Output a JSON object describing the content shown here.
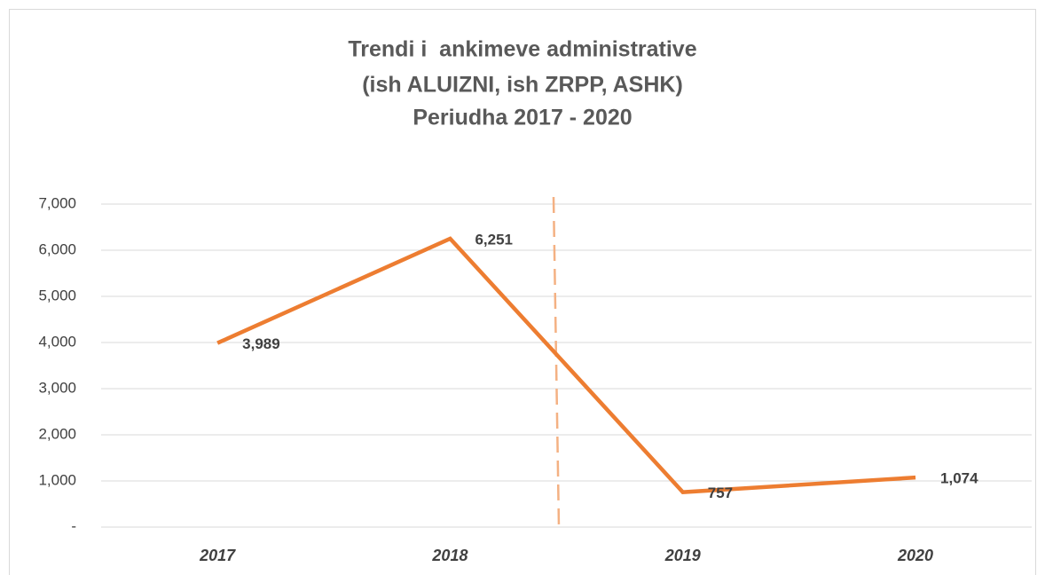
{
  "chart_data": {
    "type": "line",
    "title": [
      "Trendi i  ankimeve administrative",
      "(ish ALUIZNI, ish ZRPP, ASHK)",
      "Periudha 2017 - 2020"
    ],
    "categories": [
      "2017",
      "2018",
      "2019",
      "2020"
    ],
    "values": [
      3989,
      6251,
      757,
      1074
    ],
    "value_labels": [
      "3,989",
      "6,251",
      "757",
      "1,074"
    ],
    "color": "#ed7d31",
    "ylim": [
      0,
      7000
    ],
    "yticks": [
      {
        "value": 0,
        "label": "-"
      },
      {
        "value": 1000,
        "label": "1,000"
      },
      {
        "value": 2000,
        "label": "2,000"
      },
      {
        "value": 3000,
        "label": "3,000"
      },
      {
        "value": 4000,
        "label": "4,000"
      },
      {
        "value": 5000,
        "label": "5,000"
      },
      {
        "value": 6000,
        "label": "6,000"
      },
      {
        "value": 7000,
        "label": "7,000"
      }
    ],
    "grid": true
  }
}
